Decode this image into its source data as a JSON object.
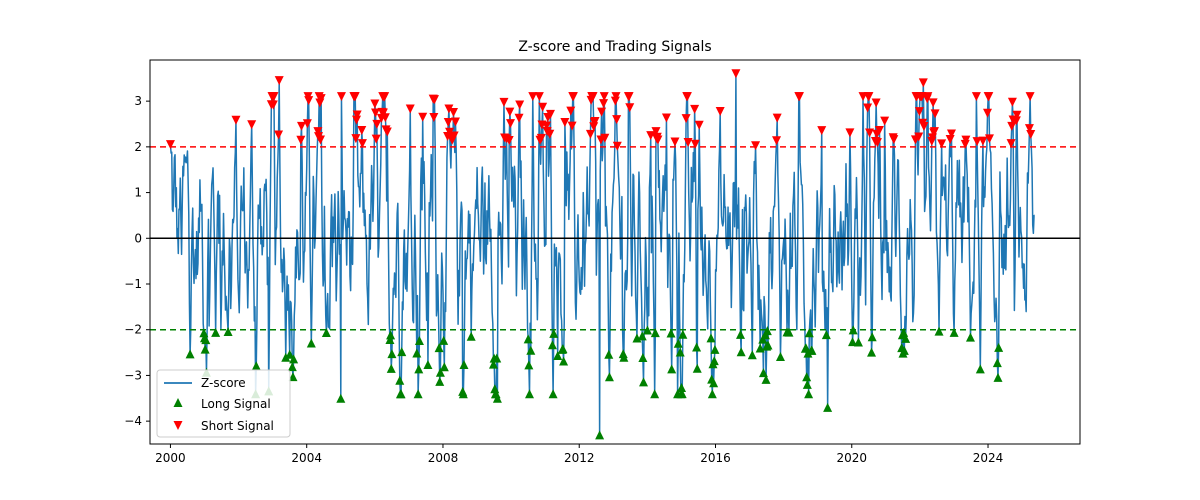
{
  "chart_data": {
    "type": "line",
    "title": "Z-score and Trading Signals",
    "xlabel": "",
    "ylabel": "",
    "x_ticks": [
      "2000",
      "2004",
      "2008",
      "2012",
      "2016",
      "2020",
      "2024"
    ],
    "y_ticks": [
      "−4",
      "−3",
      "−2",
      "−1",
      "0",
      "1",
      "2",
      "3"
    ],
    "xlim": [
      1999.4,
      2026.7
    ],
    "ylim": [
      -4.5,
      3.9
    ],
    "thresholds": {
      "upper": 2,
      "lower": -2,
      "zero": 0
    },
    "grid": false,
    "legend_position": "lower-left",
    "series": [
      {
        "name": "Z-score",
        "color": "#1f77b4",
        "marker": "line"
      },
      {
        "name": "Long Signal",
        "color": "#008000",
        "marker": "triangle-up"
      },
      {
        "name": "Short Signal",
        "color": "#ff0000",
        "marker": "triangle-down"
      }
    ],
    "date_range": [
      "2000-01",
      "2025-05"
    ],
    "notable_extremes": [
      {
        "x": 2003.2,
        "y": 3.45,
        "kind": "short"
      },
      {
        "x": 2016.6,
        "y": 3.6,
        "kind": "short"
      },
      {
        "x": 2022.1,
        "y": 3.4,
        "kind": "short"
      },
      {
        "x": 2012.6,
        "y": -4.3,
        "kind": "long"
      },
      {
        "x": 2019.3,
        "y": -3.7,
        "kind": "long"
      },
      {
        "x": 2009.6,
        "y": -3.5,
        "kind": "long"
      },
      {
        "x": 2005.0,
        "y": -3.5,
        "kind": "long"
      }
    ]
  }
}
